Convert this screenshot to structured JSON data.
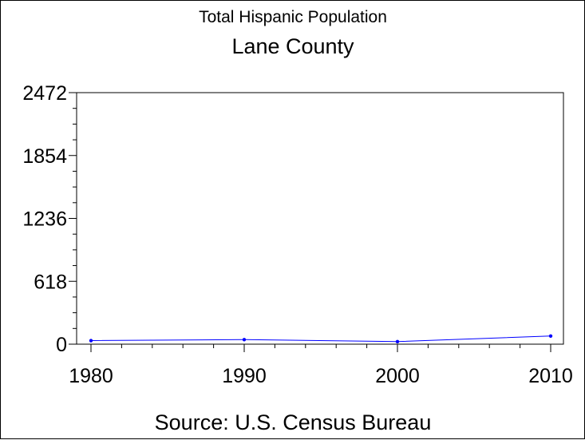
{
  "chart_data": {
    "type": "line",
    "title": "Total Hispanic Population",
    "subtitle": "Lane County",
    "footnote": "Source: U.S. Census Bureau",
    "xlabel": "",
    "ylabel": "",
    "x": [
      1980,
      1990,
      2000,
      2010
    ],
    "series": [
      {
        "values": [
          35,
          45,
          25,
          80
        ],
        "color": "#0000ff"
      }
    ],
    "x_ticks": [
      "1980",
      "1990",
      "2000",
      "2010"
    ],
    "y_ticks": [
      "0",
      "618",
      "1236",
      "1854",
      "2472"
    ],
    "xlim": [
      1980,
      2010
    ],
    "ylim": [
      0,
      2472
    ],
    "grid": false,
    "legend": "none"
  }
}
